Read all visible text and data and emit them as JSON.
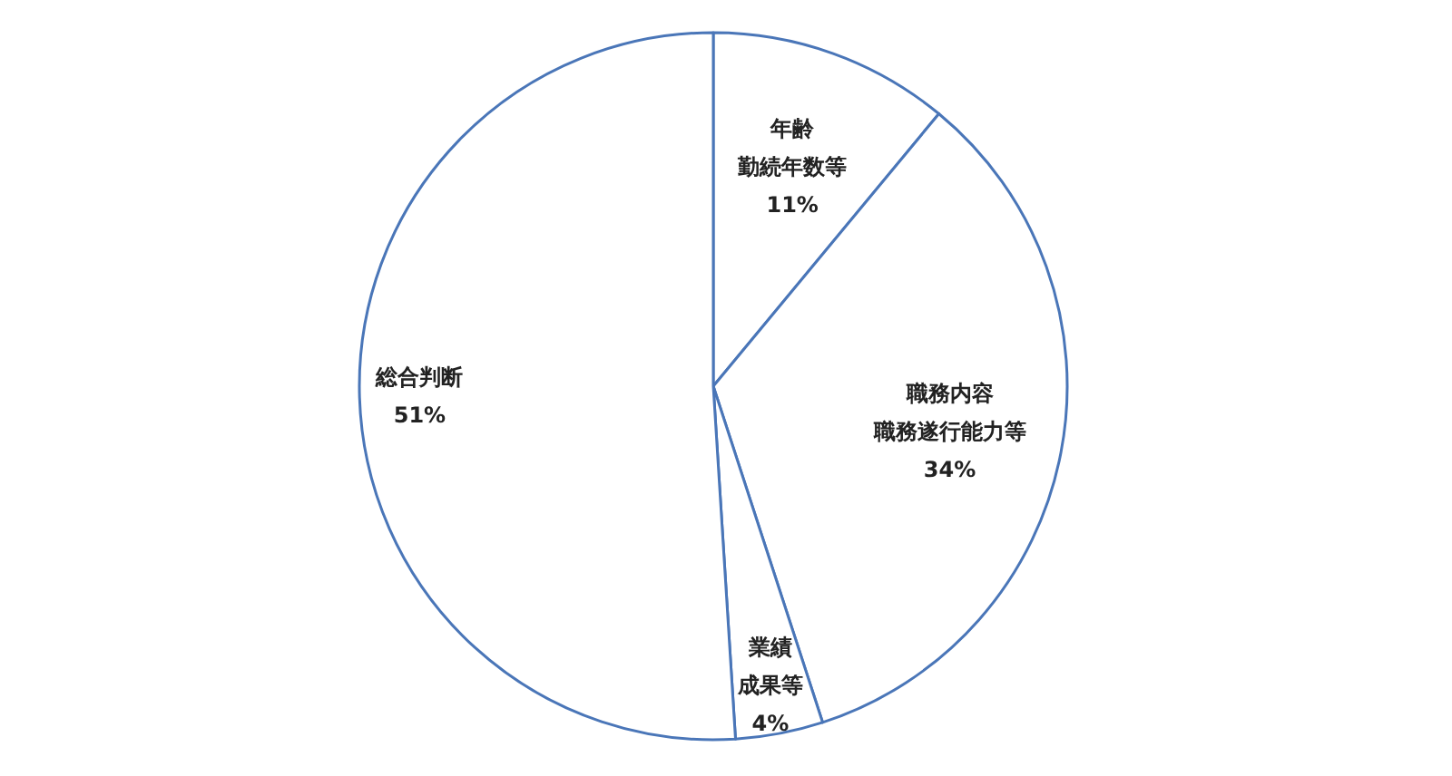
{
  "chart_data": {
    "type": "pie",
    "categories": [
      "年齢勤続年数等",
      "職務内容職務遂行能力等",
      "業績成果等",
      "総合判断"
    ],
    "value_labels": [
      "11%",
      "34%",
      "4%",
      "51%"
    ],
    "values": [
      11,
      34,
      4,
      51
    ],
    "colors": [
      "#ffffff",
      "#ffffff",
      "#ffffff",
      "#ffffff"
    ],
    "legend": false
  }
}
